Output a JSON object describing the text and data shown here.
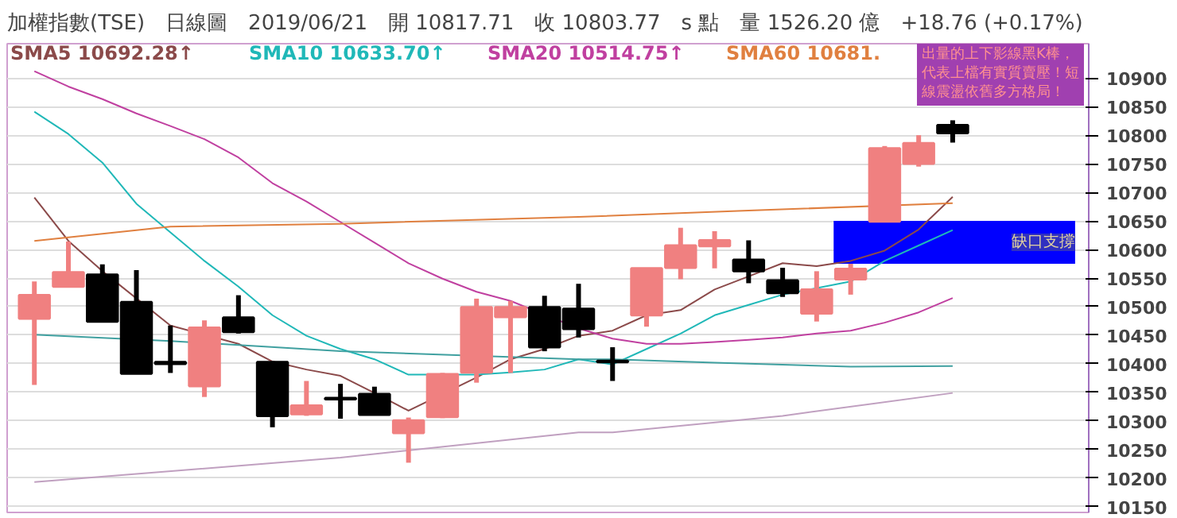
{
  "chart_data": {
    "type": "candlestick",
    "title": "加權指數(TSE)　日線圖　2019/06/21　開 10817.71　收 10803.77　s 點　量 1526.20 億　+18.76 (+0.17%)",
    "categories": [
      null,
      null,
      null,
      null,
      null,
      null,
      null,
      null,
      null,
      null,
      null,
      null,
      null,
      null,
      null,
      null,
      null,
      null,
      null,
      null,
      null,
      null,
      null,
      null,
      null,
      null,
      null,
      null
    ],
    "ohlc": [
      [
        10479,
        10544,
        10363,
        10520
      ],
      [
        10535,
        10614,
        10535,
        10560
      ],
      [
        10556,
        10574,
        10474,
        10474
      ],
      [
        10508,
        10564,
        10383,
        10383
      ],
      [
        10403,
        10467,
        10384,
        10400
      ],
      [
        10361,
        10476,
        10342,
        10463
      ],
      [
        10481,
        10520,
        10453,
        10456
      ],
      [
        10403,
        10403,
        10289,
        10309
      ],
      [
        10312,
        10370,
        10309,
        10327
      ],
      [
        10340,
        10365,
        10304,
        10338
      ],
      [
        10347,
        10360,
        10311,
        10311
      ],
      [
        10279,
        10306,
        10227,
        10301
      ],
      [
        10307,
        10384,
        10305,
        10382
      ],
      [
        10385,
        10514,
        10367,
        10499
      ],
      [
        10482,
        10510,
        10384,
        10499
      ],
      [
        10499,
        10519,
        10422,
        10429
      ],
      [
        10496,
        10540,
        10446,
        10461
      ],
      [
        10405,
        10429,
        10370,
        10403
      ],
      [
        10485,
        10567,
        10465,
        10567
      ],
      [
        10568,
        10638,
        10548,
        10607
      ],
      [
        10606,
        10632,
        10567,
        10616
      ],
      [
        10582,
        10616,
        10541,
        10562
      ],
      [
        10546,
        10568,
        10517,
        10524
      ],
      [
        10488,
        10562,
        10474,
        10530
      ],
      [
        10548,
        10575,
        10521,
        10566
      ],
      [
        10649,
        10781,
        10649,
        10777
      ],
      [
        10750,
        10800,
        10745,
        10786
      ],
      [
        10817.71,
        10826,
        10787,
        10803.77
      ]
    ],
    "colors": [
      "#f08080",
      "#f08080",
      "#000000",
      "#000000",
      "#000000",
      "#f08080",
      "#000000",
      "#000000",
      "#f08080",
      "#000000",
      "#000000",
      "#f08080",
      "#f08080",
      "#f08080",
      "#f08080",
      "#000000",
      "#000000",
      "#000000",
      "#f08080",
      "#f08080",
      "#f08080",
      "#000000",
      "#000000",
      "#f08080",
      "#f08080",
      "#f08080",
      "#f08080",
      "#000000"
    ],
    "series": [
      {
        "type": "line",
        "name": "SMA5 10692.28↑",
        "color": "#8b4a4a",
        "values": [
          10691,
          10615,
          10562,
          null,
          10467,
          null,
          10435,
          10404,
          10390,
          10379,
          10349,
          10318,
          null,
          10376,
          10408,
          10426,
          10449,
          10458,
          10485,
          10494,
          10530,
          10553,
          10576,
          10571,
          10580,
          10598,
          10635,
          10692
        ]
      },
      {
        "type": "line",
        "name": "SMA10 10633.70↑",
        "color": "#20b8b8",
        "values": [
          10841,
          10802,
          10752,
          10680,
          10630,
          10580,
          10535,
          10485,
          10449,
          10426,
          10408,
          10381,
          null,
          10381,
          10385,
          10390,
          10408,
          10399,
          10426,
          10453,
          10485,
          10503,
          10521,
          null,
          10544,
          10580,
          10607,
          10634
        ]
      },
      {
        "type": "line",
        "name": "SMA20 10514.75↑",
        "color": "#c040a0",
        "values": [
          10912,
          10885,
          10863,
          10838,
          10816,
          10793,
          10761,
          10716,
          10684,
          10648,
          10612,
          10576,
          10549,
          10526,
          10510,
          null,
          10462,
          10444,
          10435,
          10435,
          10438,
          10442,
          10446,
          10453,
          10458,
          10472,
          10490,
          10515
        ]
      },
      {
        "type": "line",
        "name": "SMA60 10681.",
        "color": "#e08040",
        "values": [
          10615,
          null,
          null,
          null,
          10640,
          null,
          null,
          null,
          null,
          10645,
          null,
          null,
          null,
          null,
          null,
          null,
          10657,
          null,
          null,
          null,
          null,
          10668,
          null,
          null,
          null,
          null,
          null,
          10681
        ]
      },
      {
        "type": "line",
        "color": "#40a0a0",
        "values": [
          10451,
          null,
          null,
          null,
          10440,
          null,
          null,
          null,
          null,
          10422,
          null,
          null,
          null,
          null,
          null,
          null,
          10408,
          10408,
          null,
          null,
          10402,
          null,
          null,
          null,
          10395,
          null,
          null,
          10396
        ]
      },
      {
        "type": "line",
        "color": "#c0a0c0",
        "values": [
          10193,
          null,
          null,
          null,
          null,
          null,
          null,
          null,
          null,
          10236,
          null,
          null,
          null,
          null,
          null,
          null,
          10280,
          10280,
          null,
          null,
          null,
          null,
          10309,
          null,
          null,
          null,
          null,
          10349
        ]
      }
    ],
    "ylim": [
      10140,
      10960
    ],
    "yticks": [
      10150,
      10200,
      10250,
      10300,
      10350,
      10400,
      10450,
      10500,
      10550,
      10600,
      10650,
      10700,
      10750,
      10800,
      10850,
      10900
    ],
    "grid": "y",
    "legend": "top",
    "bands": [
      {
        "axis": "y",
        "from": 10575,
        "to": 10650,
        "label": "缺口支撐",
        "color": "#0000ff"
      }
    ],
    "annotations": [
      "出量的上下影線黑K棒，代表上檔有實質賣壓！短線震盪依舊多方格局！"
    ]
  }
}
